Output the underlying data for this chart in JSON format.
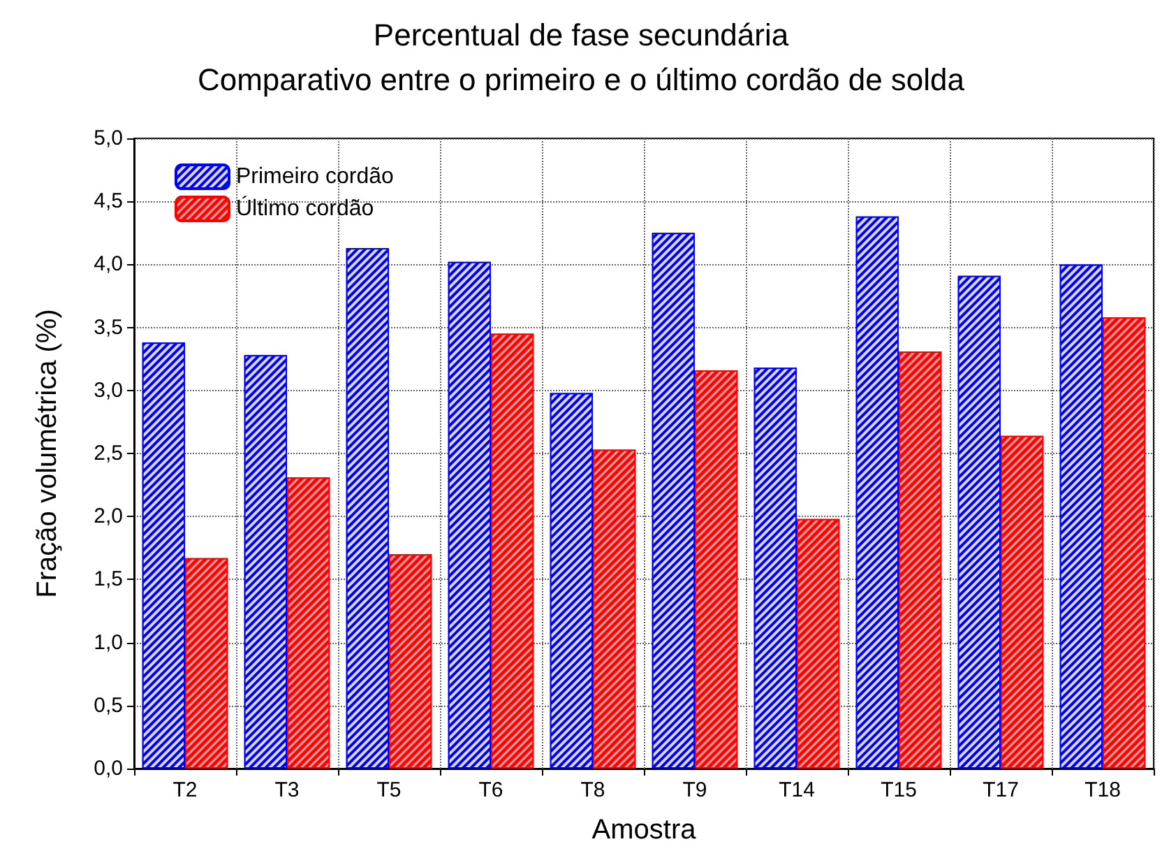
{
  "chart_data": {
    "type": "bar",
    "title": "Percentual de fase secundária\nComparativo entre o primeiro e o último cordão de solda",
    "xlabel": "Amostra",
    "ylabel": "Fração volumétrica (%)",
    "categories": [
      "T2",
      "T3",
      "T5",
      "T6",
      "T8",
      "T9",
      "T14",
      "T15",
      "T17",
      "T18"
    ],
    "series": [
      {
        "name": "Primeiro cordão",
        "color": "#0000ff",
        "values": [
          3.38,
          3.28,
          4.13,
          4.02,
          2.98,
          4.25,
          3.18,
          4.38,
          3.91,
          4.0
        ]
      },
      {
        "name": "Último cordão",
        "color": "#ff0000",
        "values": [
          1.67,
          2.31,
          1.7,
          3.45,
          2.53,
          3.16,
          1.98,
          3.31,
          2.64,
          3.58
        ]
      }
    ],
    "ylim": [
      0,
      5
    ],
    "yticks": [
      {
        "value": 0,
        "label": "0,0"
      },
      {
        "value": 0.5,
        "label": "0,5"
      },
      {
        "value": 1,
        "label": "1,0"
      },
      {
        "value": 1.5,
        "label": "1,5"
      },
      {
        "value": 2,
        "label": "2,0"
      },
      {
        "value": 2.5,
        "label": "2,5"
      },
      {
        "value": 3,
        "label": "3,0"
      },
      {
        "value": 3.5,
        "label": "3,5"
      },
      {
        "value": 4,
        "label": "4,0"
      },
      {
        "value": 4.5,
        "label": "4,5"
      },
      {
        "value": 5,
        "label": "5,0"
      }
    ],
    "grid": true,
    "legend": "top left"
  }
}
